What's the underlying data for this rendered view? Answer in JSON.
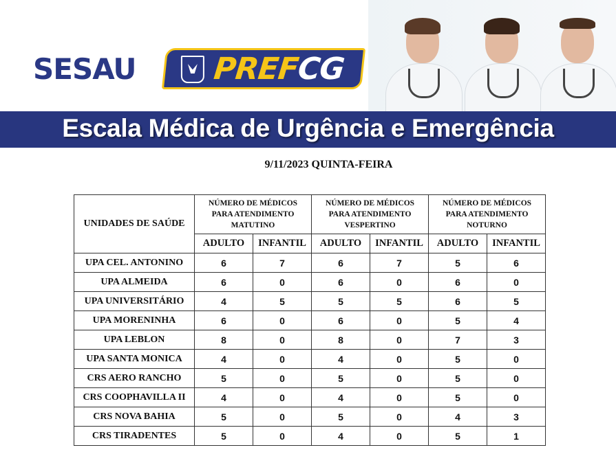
{
  "header": {
    "sesau_logo": "SESAU",
    "pref_logo": {
      "part1": "PREF",
      "part2": "CG"
    },
    "title": "Escala Médica de Urgência e Emergência",
    "colors": {
      "brand_blue": "#28367f",
      "brand_yellow": "#f5c518"
    }
  },
  "date": "9/11/2023 QUINTA-FEIRA",
  "table": {
    "unit_header": "UNIDADES DE SAÚDE",
    "groups": [
      {
        "line1": "NÚMERO DE MÉDICOS",
        "line2": "PARA ATENDIMENTO",
        "line3": "MATUTINO"
      },
      {
        "line1": "NÚMERO DE MÉDICOS",
        "line2": "PARA ATENDIMENTO",
        "line3": "VESPERTINO"
      },
      {
        "line1": "NÚMERO DE MÉDICOS",
        "line2": "PARA ATENDIMENTO",
        "line3": "NOTURNO"
      }
    ],
    "subheaders": [
      "ADULTO",
      "INFANTIL",
      "ADULTO",
      "INFANTIL",
      "ADULTO",
      "INFANTIL"
    ],
    "rows": [
      {
        "unit": "UPA CEL. ANTONINO",
        "values": [
          "6",
          "7",
          "6",
          "7",
          "5",
          "6"
        ]
      },
      {
        "unit": "UPA ALMEIDA",
        "values": [
          "6",
          "0",
          "6",
          "0",
          "6",
          "0"
        ]
      },
      {
        "unit": "UPA UNIVERSITÁRIO",
        "values": [
          "4",
          "5",
          "5",
          "5",
          "6",
          "5"
        ]
      },
      {
        "unit": "UPA MORENINHA",
        "values": [
          "6",
          "0",
          "6",
          "0",
          "5",
          "4"
        ]
      },
      {
        "unit": "UPA LEBLON",
        "values": [
          "8",
          "0",
          "8",
          "0",
          "7",
          "3"
        ]
      },
      {
        "unit": "UPA SANTA MONICA",
        "values": [
          "4",
          "0",
          "4",
          "0",
          "5",
          "0"
        ]
      },
      {
        "unit": "CRS AERO RANCHO",
        "values": [
          "5",
          "0",
          "5",
          "0",
          "5",
          "0"
        ]
      },
      {
        "unit": "CRS COOPHAVILLA II",
        "values": [
          "4",
          "0",
          "4",
          "0",
          "5",
          "0"
        ]
      },
      {
        "unit": "CRS NOVA BAHIA",
        "values": [
          "5",
          "0",
          "5",
          "0",
          "4",
          "3"
        ]
      },
      {
        "unit": "CRS TIRADENTES",
        "values": [
          "5",
          "0",
          "4",
          "0",
          "5",
          "1"
        ]
      }
    ]
  }
}
